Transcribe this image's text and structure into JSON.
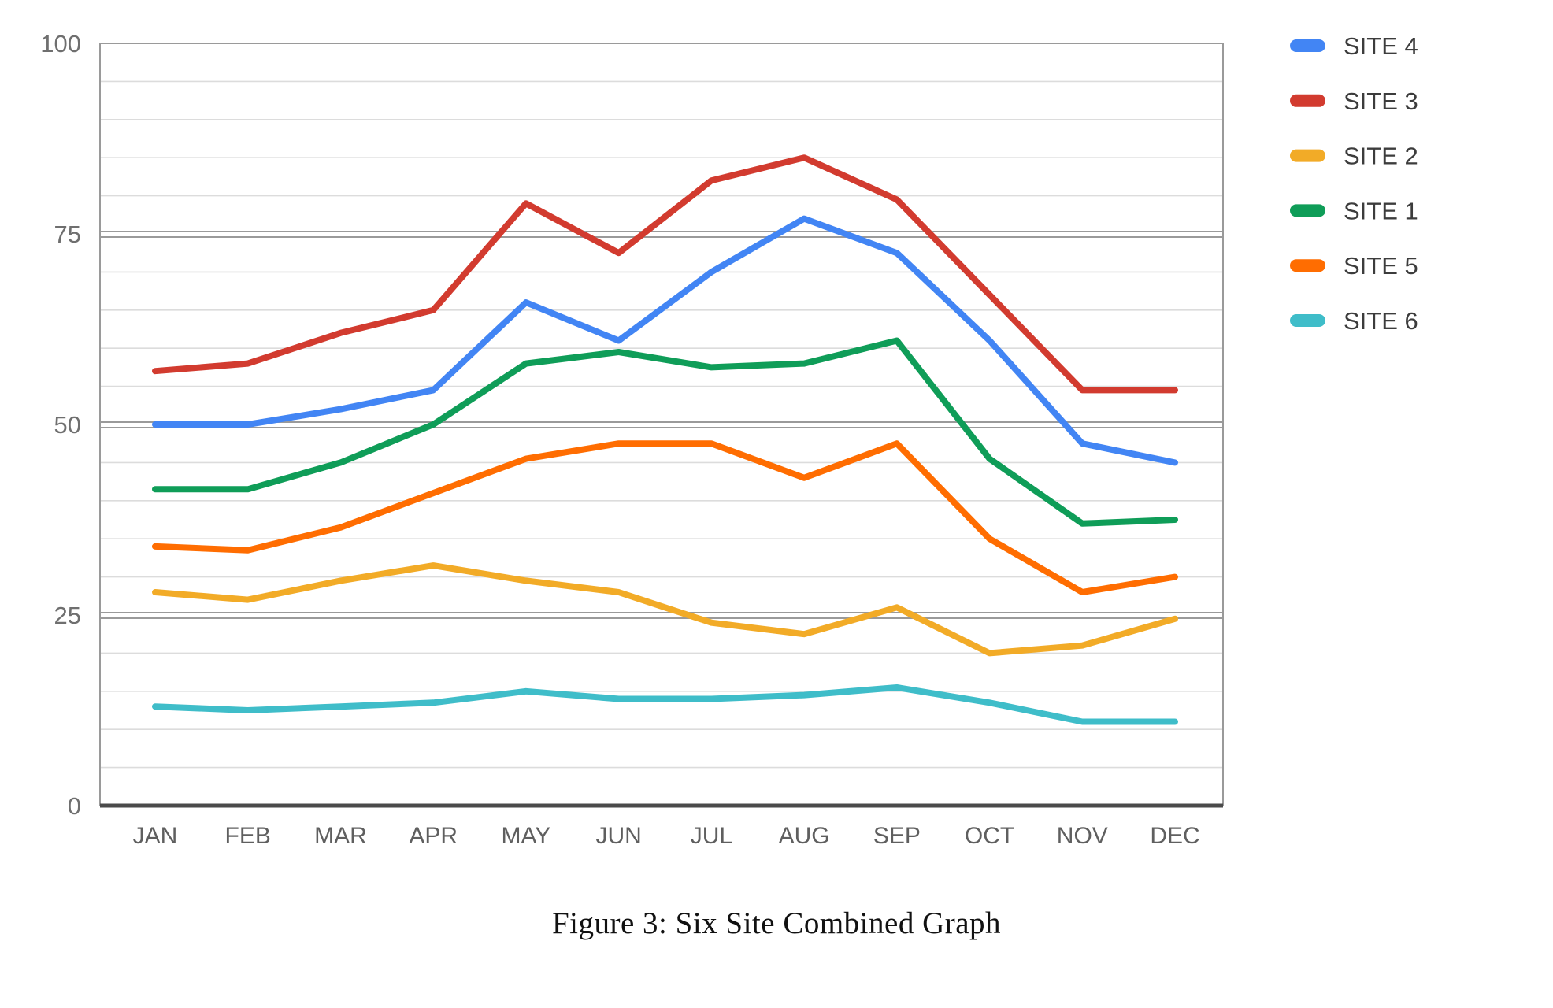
{
  "figure_caption": "Figure 3: Six Site Combined Graph",
  "chart_data": {
    "type": "line",
    "title": "",
    "xlabel": "",
    "ylabel": "",
    "categories": [
      "JAN",
      "FEB",
      "MAR",
      "APR",
      "MAY",
      "JUN",
      "JUL",
      "AUG",
      "SEP",
      "OCT",
      "NOV",
      "DEC"
    ],
    "series": [
      {
        "name": "SITE 4",
        "color": "#4285F4",
        "values": [
          50,
          50,
          52,
          54.5,
          66,
          61,
          70,
          77,
          72.5,
          61,
          47.5,
          45
        ]
      },
      {
        "name": "SITE 3",
        "color": "#D23B2F",
        "values": [
          57,
          58,
          62,
          65,
          79,
          72.5,
          82,
          85,
          79.5,
          67,
          54.5,
          54.5
        ]
      },
      {
        "name": "SITE 2",
        "color": "#F2AB27",
        "values": [
          28,
          27,
          29.5,
          31.5,
          29.5,
          28,
          24,
          22.5,
          26,
          20,
          21,
          24.5
        ]
      },
      {
        "name": "SITE 1",
        "color": "#0F9D58",
        "values": [
          41.5,
          41.5,
          45,
          50,
          58,
          59.5,
          57.5,
          58,
          61,
          45.5,
          37,
          37.5
        ]
      },
      {
        "name": "SITE 5",
        "color": "#FF6D01",
        "values": [
          34,
          33.5,
          36.5,
          41,
          45.5,
          47.5,
          47.5,
          43,
          47.5,
          35,
          28,
          30
        ]
      },
      {
        "name": "SITE 6",
        "color": "#3FBDC9",
        "values": [
          13,
          12.5,
          13,
          13.5,
          15,
          14,
          14,
          14.5,
          15.5,
          13.5,
          11,
          11
        ]
      }
    ],
    "y_axis": {
      "min": 0,
      "max": 100,
      "major_ticks": [
        100,
        75,
        50,
        25,
        0
      ],
      "minor_step": 5,
      "tick_labels": [
        "100",
        "75",
        "50",
        "25",
        "0"
      ]
    },
    "legend_position": "right",
    "grid": true
  },
  "style_colors": {
    "minor_grid": "#dcdcdc",
    "major_grid": "#9a9a9a",
    "axis_line": "#4a4a4a",
    "plot_border": "#9a9a9a",
    "background": "#ffffff"
  }
}
